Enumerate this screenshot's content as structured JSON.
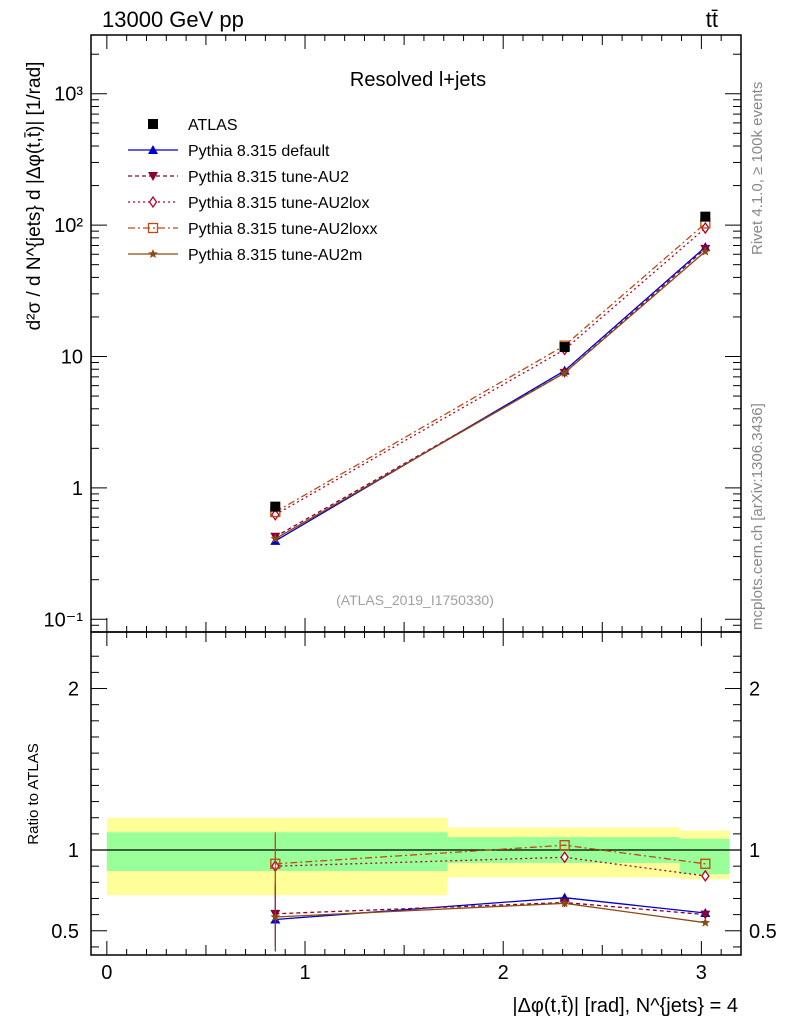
{
  "header": {
    "left": "13000 GeV pp",
    "right": "tt̄"
  },
  "side_labels": {
    "rivet": "Rivet 4.1.0, ≥ 100k events",
    "mcplots": "mcplots.cern.ch [arXiv:1306.3436]"
  },
  "chart_data": [
    {
      "type": "line",
      "panel": "main",
      "title": "Resolved l+jets",
      "watermark": "(ATLAS_2019_I1750330)",
      "ylabel": "d²σ / d N^{jets} d |Δφ(t,t̄)| [1/rad]",
      "yscale": "log",
      "ylim": [
        0.08,
        2800
      ],
      "xlim": [
        -0.08,
        3.2
      ],
      "x": [
        0.85,
        2.31,
        3.02
      ],
      "ytick_labels": [
        "10⁻¹",
        "1",
        "10",
        "10²",
        "10³"
      ],
      "ytick_values": [
        0.1,
        1,
        10,
        100,
        1000
      ],
      "data": {
        "name": "ATLAS",
        "values": [
          0.72,
          11.8,
          116
        ]
      },
      "series": [
        {
          "name": "Pythia 8.315 default",
          "color": "#0000cc",
          "dash": "",
          "marker": "triangle-up",
          "values": [
            0.395,
            7.8,
            68
          ]
        },
        {
          "name": "Pythia 8.315 tune-AU2",
          "color": "#8b0033",
          "dash": "4,3",
          "marker": "triangle-down",
          "values": [
            0.425,
            7.5,
            66
          ]
        },
        {
          "name": "Pythia 8.315 tune-AU2lox",
          "color": "#b5002d",
          "dash": "2,3",
          "marker": "diamond-open",
          "values": [
            0.625,
            11.3,
            95
          ]
        },
        {
          "name": "Pythia 8.315 tune-AU2loxx",
          "color": "#c04a10",
          "dash": "7,3,2,3",
          "marker": "square-open",
          "values": [
            0.655,
            12.1,
            103
          ]
        },
        {
          "name": "Pythia 8.315 tune-AU2m",
          "color": "#8b4a10",
          "dash": "",
          "marker": "star",
          "values": [
            0.41,
            7.5,
            63
          ]
        }
      ]
    },
    {
      "type": "line",
      "panel": "ratio",
      "ylabel": "Ratio to ATLAS",
      "xlabel": "|Δφ(t,t̄)| [rad], N^{jets} = 4",
      "ylim": [
        0.35,
        2.35
      ],
      "xlim": [
        -0.08,
        3.2
      ],
      "x": [
        0.85,
        2.31,
        3.02
      ],
      "xtick_labels": [
        "0",
        "1",
        "2",
        "3"
      ],
      "ytick_labels": [
        "0.5",
        "1",
        "2"
      ],
      "ytick_values": [
        0.5,
        1,
        2
      ],
      "bins": [
        [
          0,
          1.72
        ],
        [
          1.72,
          2.89
        ],
        [
          2.89,
          3.1416
        ]
      ],
      "band_green": [
        [
          0.87,
          1.11
        ],
        [
          0.92,
          1.08
        ],
        [
          0.85,
          1.07
        ]
      ],
      "band_yellow": [
        [
          0.72,
          1.2
        ],
        [
          0.83,
          1.14
        ],
        [
          0.82,
          1.12
        ]
      ],
      "series": [
        {
          "name": "Pythia 8.315 default",
          "values": [
            0.57,
            0.705,
            0.61
          ]
        },
        {
          "name": "Pythia 8.315 tune-AU2",
          "values": [
            0.605,
            0.675,
            0.6
          ]
        },
        {
          "name": "Pythia 8.315 tune-AU2lox",
          "values": [
            0.9,
            0.955,
            0.84
          ]
        },
        {
          "name": "Pythia 8.315 tune-AU2loxx",
          "values": [
            0.915,
            1.03,
            0.915
          ]
        },
        {
          "name": "Pythia 8.315 tune-AU2m",
          "values": [
            0.585,
            0.67,
            0.55
          ]
        }
      ]
    }
  ]
}
